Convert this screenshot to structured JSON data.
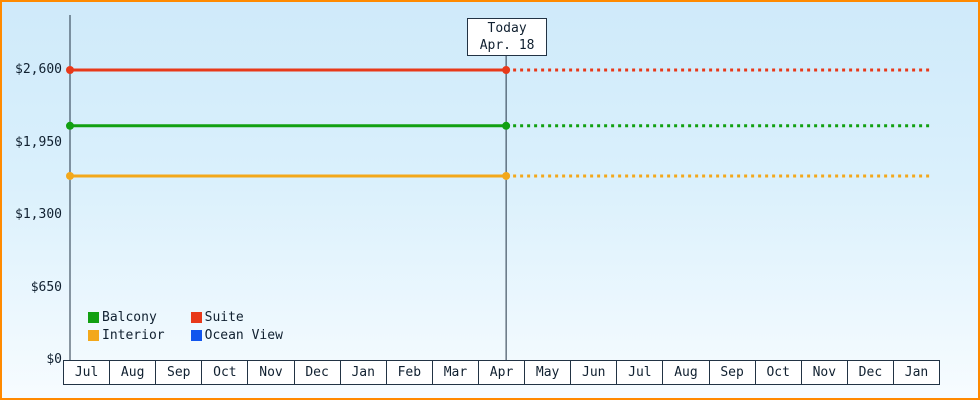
{
  "chart_data": {
    "type": "line",
    "title": "",
    "x_categories": [
      "Jul",
      "Aug",
      "Sep",
      "Oct",
      "Nov",
      "Dec",
      "Jan",
      "Feb",
      "Mar",
      "Apr",
      "May",
      "Jun",
      "Jul",
      "Aug",
      "Sep",
      "Oct",
      "Nov",
      "Dec",
      "Jan"
    ],
    "y_ticks": [
      {
        "label": "$2,600",
        "value": 2600
      },
      {
        "label": "$1,950",
        "value": 1950
      },
      {
        "label": "$1,300",
        "value": 1300
      },
      {
        "label": "$650",
        "value": 650
      },
      {
        "label": "$0",
        "value": 0
      }
    ],
    "ylim": [
      0,
      2950
    ],
    "today": {
      "label": "Today",
      "date": "Apr. 18",
      "month_index": 9,
      "day_fraction": 0.6
    },
    "series": [
      {
        "name": "Balcony",
        "color": "#12a012",
        "value": 2100,
        "line_visible": true
      },
      {
        "name": "Suite",
        "color": "#e8391a",
        "value": 2600,
        "line_visible": true
      },
      {
        "name": "Interior",
        "color": "#f3a81b",
        "value": 1650,
        "line_visible": true
      },
      {
        "name": "Ocean View",
        "color": "#1155ee",
        "value": null,
        "line_visible": false
      }
    ],
    "legend_position": "bottom-left",
    "style": {
      "solid_before_today": true,
      "dotted_after_today": true
    }
  },
  "colors": {
    "frame_border": "#ff8a00",
    "axis": "#223344",
    "text": "#102030",
    "cell_background": "#ffffff"
  }
}
